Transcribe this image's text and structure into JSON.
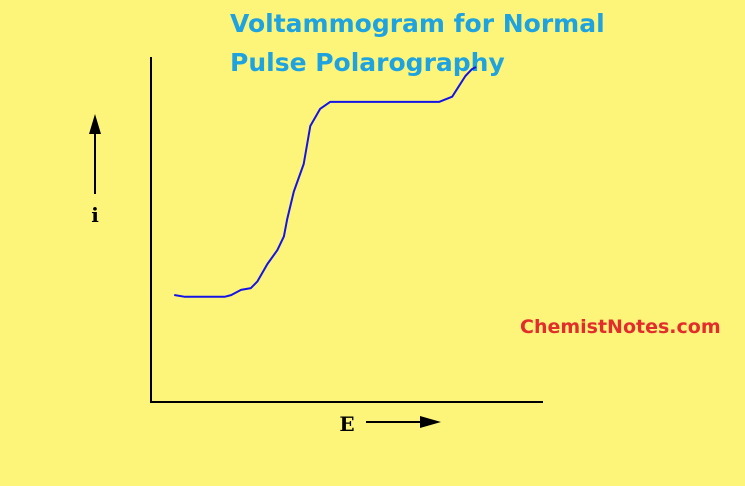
{
  "title": "Voltammogram for Normal\nPulse Polarography",
  "watermark": "ChemistNotes.com",
  "colors": {
    "background": "#fdf57a",
    "title": "#1ea3e0",
    "watermark": "#e32c2c",
    "curve": "#1414e6",
    "axes": "#000000"
  },
  "chart_data": {
    "type": "line",
    "title": "Voltammogram for Normal Pulse Polarography",
    "xlabel": "E",
    "ylabel": "i",
    "grid": false,
    "legend": "none",
    "xlim": [
      0,
      100
    ],
    "ylim": [
      0,
      100
    ],
    "series": [
      {
        "x": [
          0,
          3,
          10,
          15,
          17,
          20,
          23,
          25,
          28,
          31,
          33,
          34,
          36,
          39,
          41,
          44,
          47,
          51,
          60,
          70,
          80,
          84,
          86,
          88,
          90,
          91
        ],
        "y": [
          31,
          30.5,
          30.5,
          30.5,
          31,
          32.5,
          33,
          35,
          40,
          44,
          48,
          53,
          61,
          69,
          80,
          85,
          87,
          87,
          87,
          87,
          87,
          88.5,
          91.5,
          94.5,
          96.5,
          97
        ]
      }
    ]
  }
}
